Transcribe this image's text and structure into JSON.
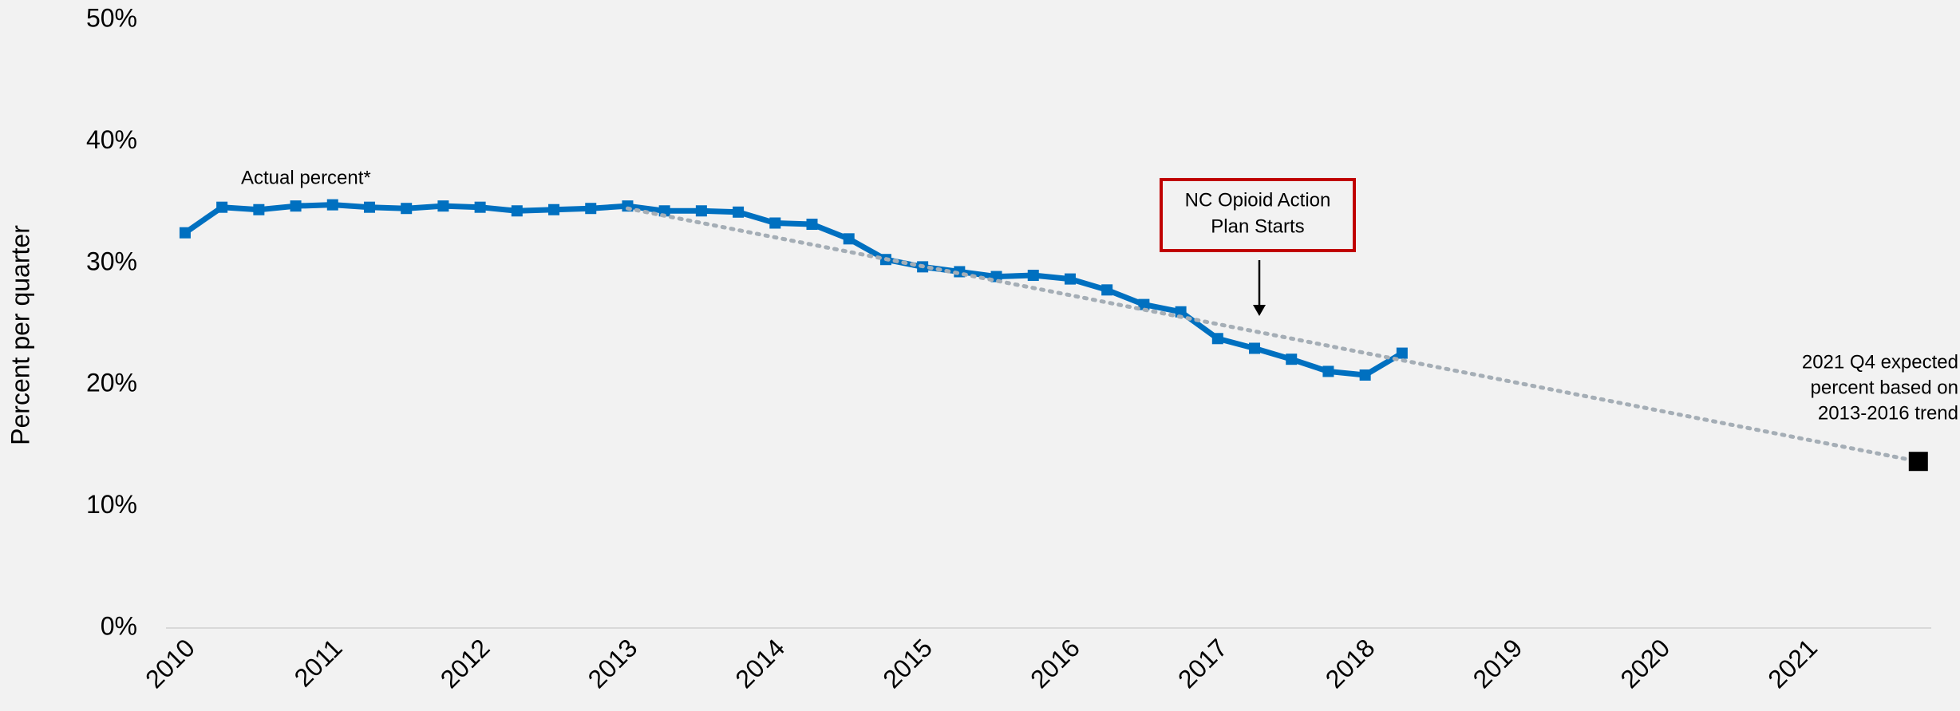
{
  "chart_data": {
    "type": "line",
    "y_label": "Percent per quarter",
    "x": [
      2010,
      2010.25,
      2010.5,
      2010.75,
      2011,
      2011.25,
      2011.5,
      2011.75,
      2012,
      2012.25,
      2012.5,
      2012.75,
      2013,
      2013.25,
      2013.5,
      2013.75,
      2014,
      2014.25,
      2014.5,
      2014.75,
      2015,
      2015.25,
      2015.5,
      2015.75,
      2016,
      2016.25,
      2016.5,
      2016.75,
      2017,
      2017.25,
      2017.5,
      2017.75,
      2018,
      2018.25
    ],
    "series": [
      {
        "name": "Actual percent*",
        "color": "#0070c0",
        "x": [
          2010,
          2010.25,
          2010.5,
          2010.75,
          2011,
          2011.25,
          2011.5,
          2011.75,
          2012,
          2012.25,
          2012.5,
          2012.75,
          2013,
          2013.25,
          2013.5,
          2013.75,
          2014,
          2014.25,
          2014.5,
          2014.75,
          2015,
          2015.25,
          2015.5,
          2015.75,
          2016,
          2016.25,
          2016.5,
          2016.75,
          2017,
          2017.25,
          2017.5,
          2017.75,
          2018,
          2018.25
        ],
        "values": [
          32.5,
          34.6,
          34.4,
          34.7,
          34.8,
          34.6,
          34.5,
          34.7,
          34.6,
          34.3,
          34.4,
          34.5,
          34.7,
          34.3,
          34.3,
          34.2,
          33.3,
          33.2,
          32.0,
          30.3,
          29.7,
          29.3,
          28.9,
          29.0,
          28.7,
          27.8,
          26.6,
          26.0,
          23.8,
          23.0,
          22.1,
          21.1,
          20.8,
          22.6
        ]
      },
      {
        "name": "trend",
        "color": "#a5aeb6",
        "marker_color": "#000000",
        "x": [
          2013,
          2021.75
        ],
        "values": [
          34.5,
          13.7
        ]
      }
    ],
    "xlim": [
      2009.6,
      2022.0
    ],
    "ylim": [
      0,
      50
    ],
    "xticks": [
      2010,
      2011,
      2012,
      2013,
      2014,
      2015,
      2016,
      2017,
      2018,
      2019,
      2020,
      2021
    ],
    "yticks": [
      {
        "value": 0,
        "label": "0%"
      },
      {
        "value": 10,
        "label": "10%"
      },
      {
        "value": 20,
        "label": "20%"
      },
      {
        "value": 30,
        "label": "30%"
      },
      {
        "value": 40,
        "label": "40%"
      },
      {
        "value": 50,
        "label": "50%"
      }
    ],
    "annotation_box": [
      "NC Opioid Action",
      "Plan Starts"
    ],
    "annotation_box_color": "#c00000",
    "trend_note": [
      "2021 Q4 expected",
      "percent based on",
      "2013-2016 trend"
    ]
  }
}
